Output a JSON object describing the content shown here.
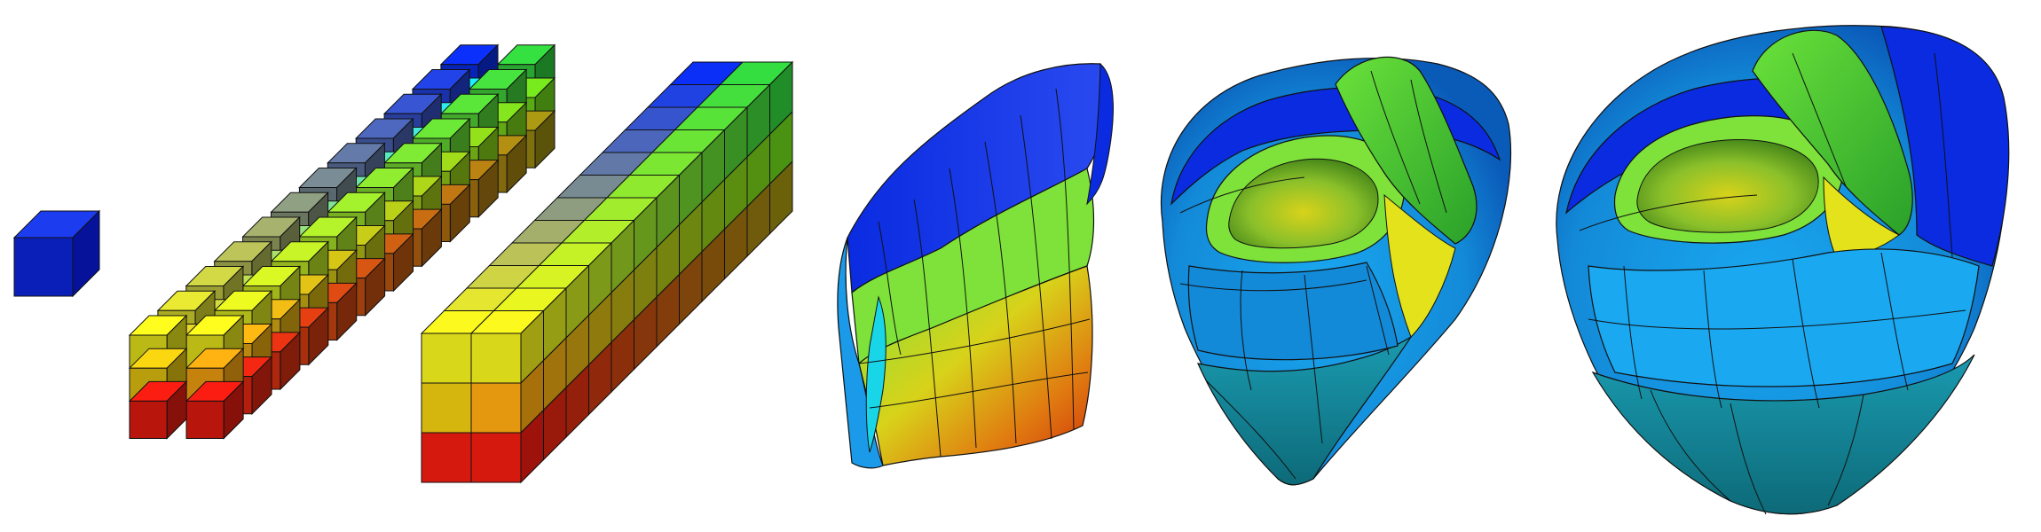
{
  "figure": {
    "panels": [
      {
        "id": "unit-cube",
        "kind": "single element cube"
      },
      {
        "id": "exploded-grid",
        "kind": "exploded hexahedral element grid",
        "grid": {
          "cols": 2,
          "rows": 3,
          "depth": 12
        }
      },
      {
        "id": "assembled-block",
        "kind": "assembled hexahedral block",
        "grid": {
          "cols": 2,
          "rows": 3,
          "depth": 12
        }
      },
      {
        "id": "deformed-slab",
        "kind": "block mapped to heart wall slab"
      },
      {
        "id": "partial-heart",
        "kind": "biventricular heart mesh, partial"
      },
      {
        "id": "full-heart",
        "kind": "biventricular heart mesh, full"
      }
    ],
    "colors": {
      "blue": "#0a2be0",
      "navy": "#06129a",
      "sky": "#1a9ae8",
      "cyan": "#19d5e8",
      "teal": "#1a9aa0",
      "green": "#2fc93a",
      "lime": "#7ee23a",
      "yellow": "#e4e21a",
      "olive": "#9a8a10",
      "orange": "#f0a010",
      "red": "#e01a10",
      "darkred": "#8a1008",
      "mesh_line": "#111111"
    }
  }
}
